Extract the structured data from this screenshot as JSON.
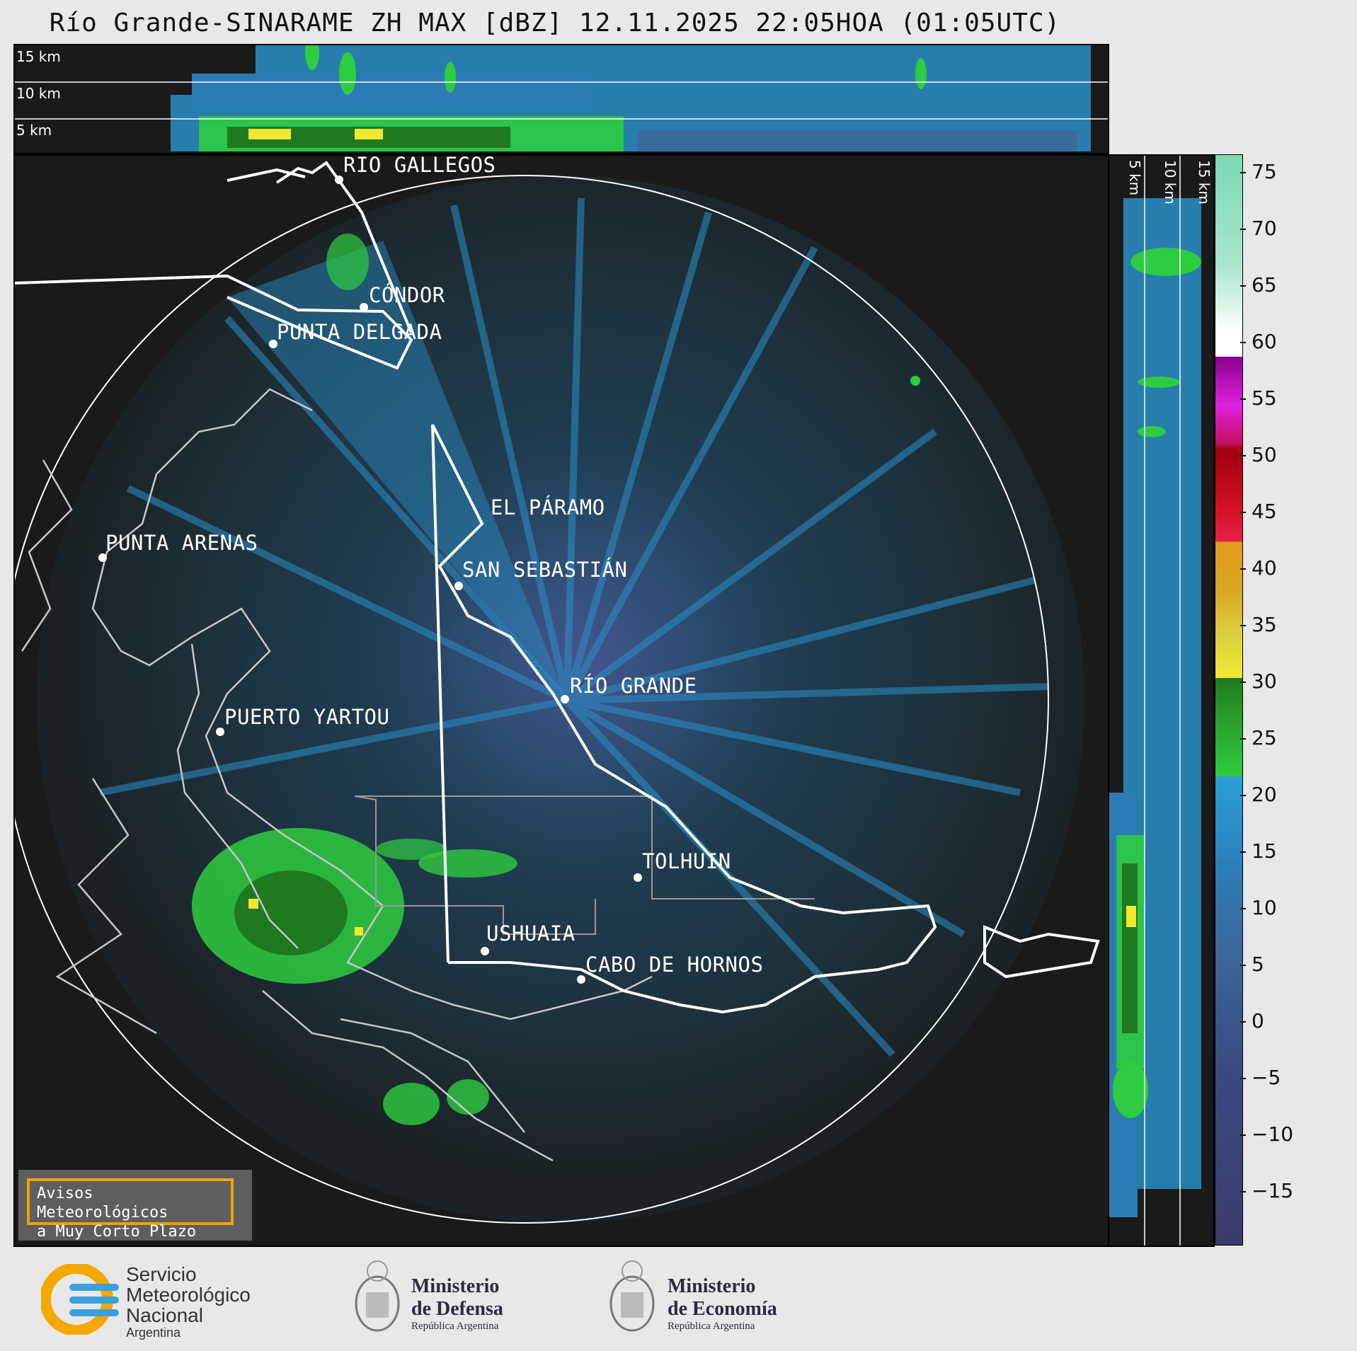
{
  "title": "Río Grande-SINARAME ZH MAX [dBZ] 12.11.2025 22:05HOA (01:05UTC)",
  "top_panel": {
    "km_labels": [
      "15 km",
      "10 km",
      "5 km"
    ]
  },
  "side_panel": {
    "km_labels": [
      "5 km",
      "10 km",
      "15 km"
    ]
  },
  "cities": [
    {
      "name": "RÍO GALLEGOS"
    },
    {
      "name": "CÓNDOR"
    },
    {
      "name": "PUNTA DELGADA"
    },
    {
      "name": "EL PÁRAMO"
    },
    {
      "name": "PUNTA ARENAS"
    },
    {
      "name": "SAN SEBASTIÁN"
    },
    {
      "name": "RÍO GRANDE"
    },
    {
      "name": "PUERTO YARTOU"
    },
    {
      "name": "TOLHUIN"
    },
    {
      "name": "USHUAIA"
    },
    {
      "name": "CABO DE HORNOS"
    }
  ],
  "colorbar": {
    "unit": "dBZ",
    "ticks": [
      "75",
      "70",
      "65",
      "60",
      "55",
      "50",
      "45",
      "40",
      "35",
      "30",
      "25",
      "20",
      "15",
      "10",
      "5",
      "0",
      "−5",
      "−10",
      "−15"
    ],
    "colors": {
      "low": "#3b3b6b",
      "mid_low": "#3d6aa0",
      "blue": "#2a9fd6",
      "green": "#2ecc40",
      "dark_green": "#1f7a1f",
      "yellow": "#f0e830",
      "orange": "#e39a1a",
      "red": "#d01020",
      "magenta": "#e020e0",
      "white": "#ffffff",
      "mint": "#7ad9b2"
    }
  },
  "warning": {
    "line1": "Avisos Meteorológicos",
    "line2": "a Muy Corto Plazo"
  },
  "logos": {
    "smn": {
      "line1": "Servicio",
      "line2": "Meteorológico",
      "line3": "Nacional",
      "line4": "Argentina"
    },
    "defensa": {
      "line1": "Ministerio",
      "line2": "de Defensa",
      "line3": "República Argentina"
    },
    "economia": {
      "line1": "Ministerio",
      "line2": "de Economía",
      "line3": "República Argentina"
    }
  }
}
